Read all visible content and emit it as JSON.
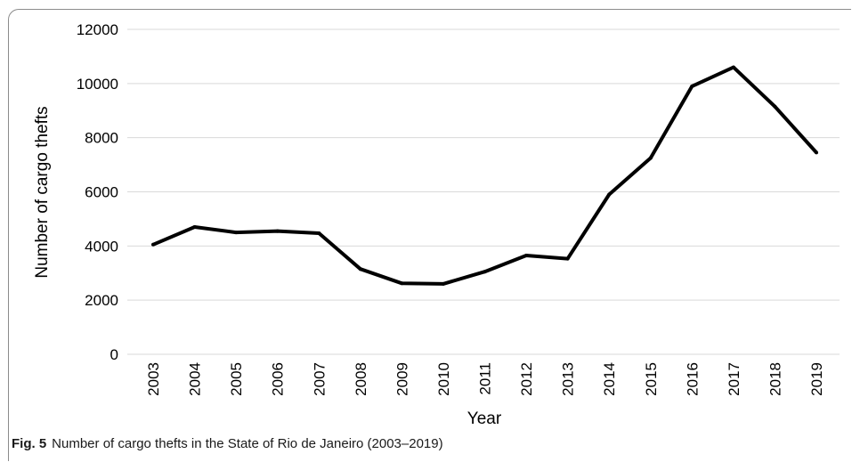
{
  "caption": {
    "label": "Fig. 5",
    "text": "Number of cargo thefts in the State of Rio de Janeiro (2003–2019)"
  },
  "chart_data": {
    "type": "line",
    "title": "",
    "xlabel": "Year",
    "ylabel": "Number of cargo thefts",
    "ylim": [
      0,
      12000
    ],
    "yticks": [
      0,
      2000,
      4000,
      6000,
      8000,
      10000,
      12000
    ],
    "grid": "horizontal",
    "legend": "none",
    "line_color": "#000000",
    "categories": [
      "2003",
      "2004",
      "2005",
      "2006",
      "2007",
      "2008",
      "2009",
      "2010",
      "2011",
      "2012",
      "2013",
      "2014",
      "2015",
      "2016",
      "2017",
      "2018",
      "2019"
    ],
    "series": [
      {
        "values": [
          4050,
          4700,
          4500,
          4550,
          4470,
          3150,
          2620,
          2600,
          3050,
          3650,
          3530,
          5900,
          7250,
          9900,
          10600,
          9150,
          7450
        ]
      }
    ]
  }
}
